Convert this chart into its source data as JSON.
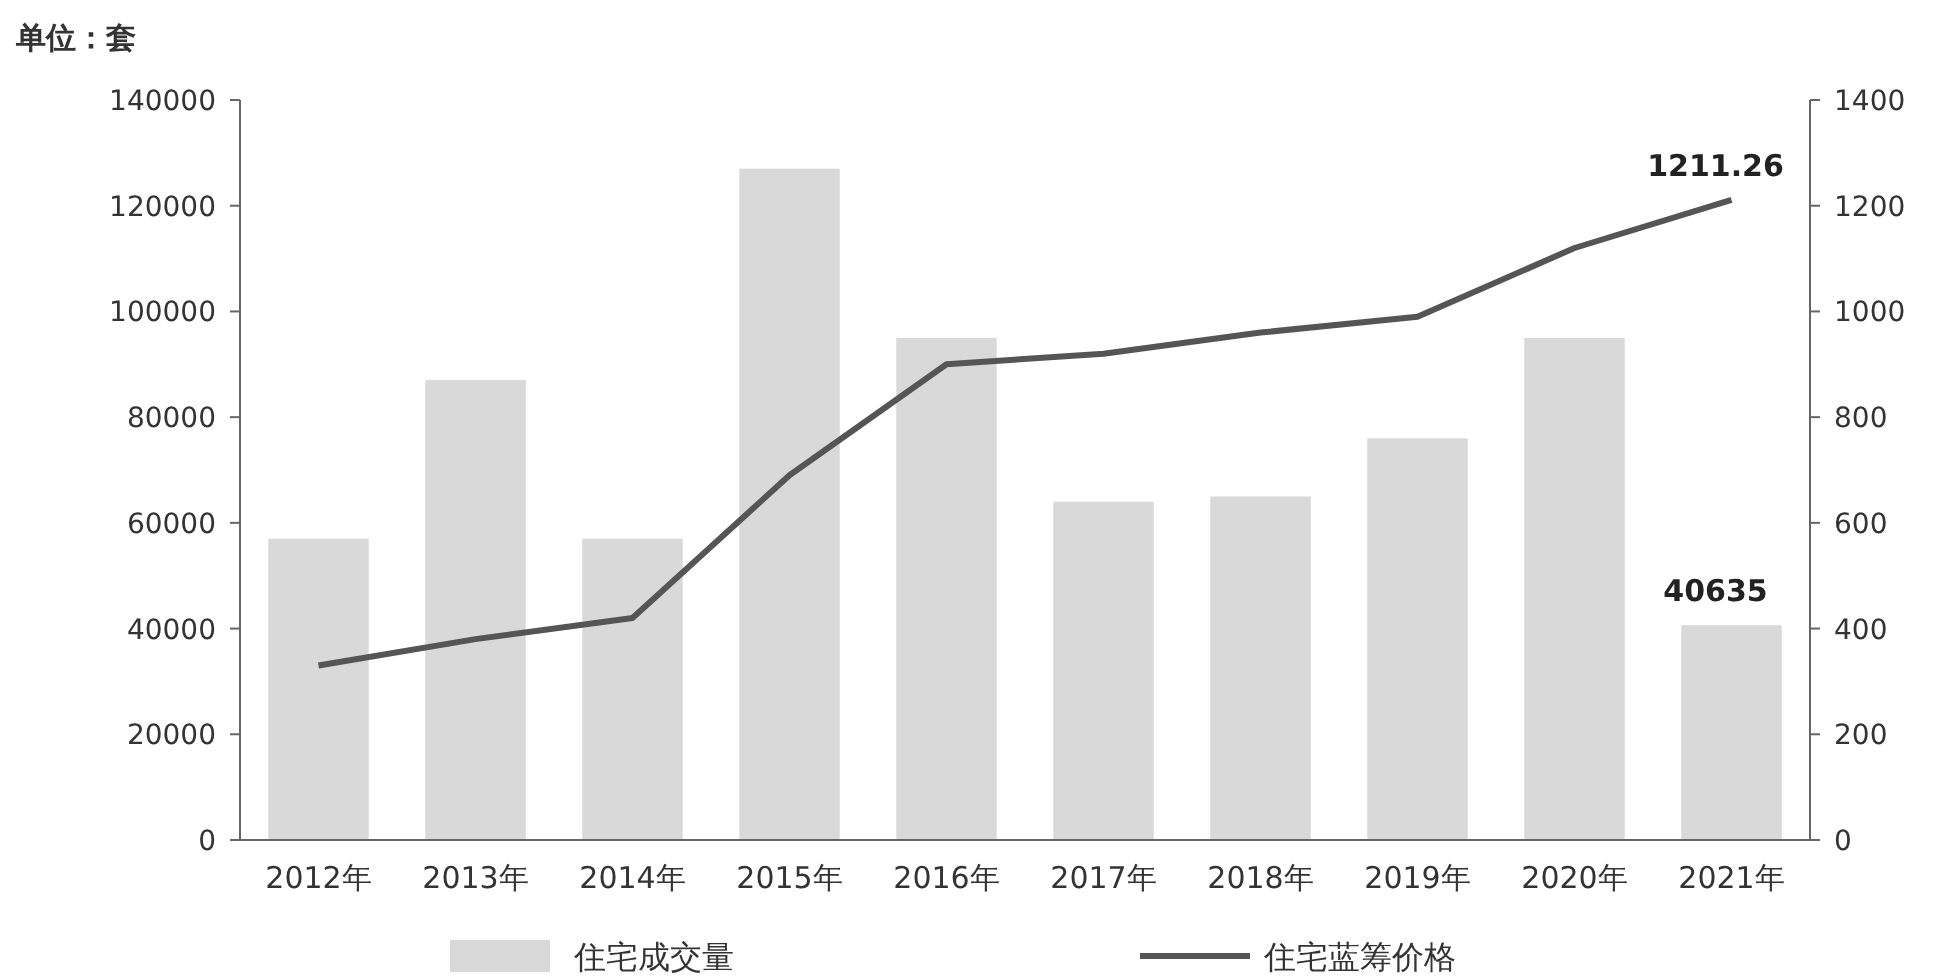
{
  "chart_data": {
    "type": "bar",
    "ylabel": "单位：套",
    "categories": [
      "2012年",
      "2013年",
      "2014年",
      "2015年",
      "2016年",
      "2017年",
      "2018年",
      "2019年",
      "2020年",
      "2021年"
    ],
    "series": [
      {
        "name": "住宅成交量",
        "color": "#d9d9d9",
        "values": [
          57000,
          87000,
          57000,
          127000,
          95000,
          64000,
          65000,
          76000,
          95000,
          40635
        ],
        "value_labels": [
          null,
          null,
          null,
          null,
          null,
          null,
          null,
          null,
          null,
          "40635"
        ]
      },
      {
        "name": "住宅蓝筹价格",
        "type": "line",
        "axis": "y2",
        "color": "#555555",
        "values": [
          330,
          380,
          420,
          690,
          900,
          920,
          960,
          990,
          1120,
          1211.26
        ],
        "value_labels": [
          null,
          null,
          null,
          null,
          null,
          null,
          null,
          null,
          null,
          "1211.26"
        ]
      }
    ],
    "ylim": [
      0,
      140000
    ],
    "yticks": [
      0,
      20000,
      40000,
      60000,
      80000,
      100000,
      120000,
      140000
    ],
    "y2lim": [
      0,
      1400
    ],
    "y2ticks": [
      0,
      200,
      400,
      600,
      800,
      1000,
      1200,
      1400
    ],
    "legend": "bottom",
    "grid": false
  }
}
